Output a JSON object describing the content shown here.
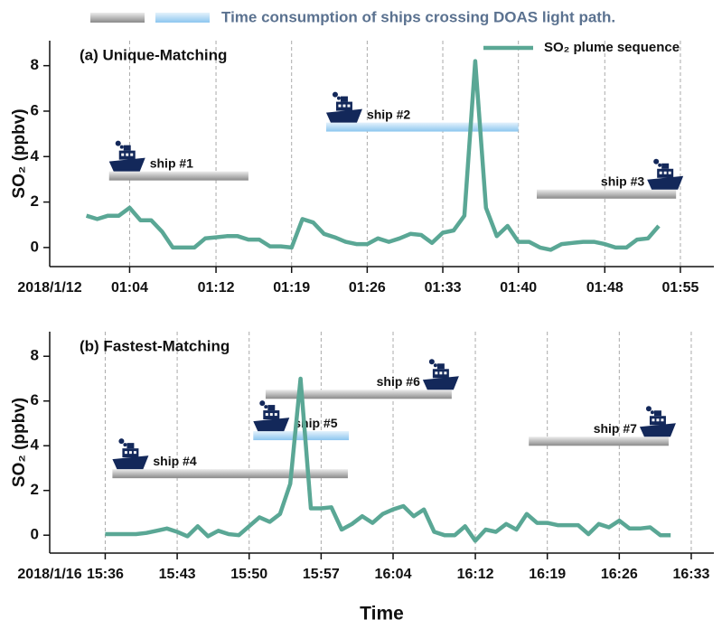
{
  "ship_bar_legend": "Time consumption of ships crossing DOAS light path.",
  "chart_data": [
    {
      "type": "line",
      "title": "(a) Unique-Matching",
      "ylabel": "SO₂ (ppbv)",
      "x_date_label": "2018/1/12",
      "x": [
        60,
        61,
        62,
        63,
        64,
        65,
        66,
        67,
        68,
        69,
        70,
        71,
        72,
        73,
        74,
        75,
        76,
        77,
        78,
        79,
        80,
        81,
        82,
        83,
        84,
        85,
        86,
        87,
        88,
        89,
        90,
        91,
        92,
        93,
        94,
        95,
        96,
        97,
        98,
        99,
        100,
        101,
        102,
        103,
        104,
        105,
        106,
        107,
        108,
        109,
        110,
        111,
        112,
        113
      ],
      "series": [
        {
          "name": "SO₂ plume sequence",
          "color": "#5aa795",
          "values": [
            1.4,
            1.25,
            1.4,
            1.4,
            1.75,
            1.2,
            1.2,
            0.7,
            0.0,
            0.0,
            0.0,
            0.4,
            0.45,
            0.5,
            0.5,
            0.35,
            0.35,
            0.05,
            0.05,
            0.0,
            1.25,
            1.1,
            0.6,
            0.45,
            0.25,
            0.15,
            0.15,
            0.4,
            0.25,
            0.4,
            0.6,
            0.55,
            0.2,
            0.65,
            0.75,
            1.4,
            8.2,
            1.75,
            0.5,
            0.95,
            0.25,
            0.25,
            0.0,
            -0.1,
            0.15,
            0.2,
            0.25,
            0.25,
            0.15,
            0.0,
            0.0,
            0.35,
            0.4,
            0.95
          ]
        }
      ],
      "xlim": [
        56.6,
        118.1
      ],
      "xticks": [
        {
          "value": 64,
          "label": "01:04"
        },
        {
          "value": 72,
          "label": "01:12"
        },
        {
          "value": 79,
          "label": "01:19"
        },
        {
          "value": 86,
          "label": "01:26"
        },
        {
          "value": 93,
          "label": "01:33"
        },
        {
          "value": 100,
          "label": "01:40"
        },
        {
          "value": 108,
          "label": "01:48"
        },
        {
          "value": 115,
          "label": "01:55"
        }
      ],
      "ylim": [
        -0.84,
        9.1
      ],
      "yticks": [
        0,
        2,
        4,
        6,
        8
      ],
      "grid": true,
      "legend": "upper right",
      "ships": [
        {
          "label": "ship #1",
          "start": 62.1,
          "end": 75.0,
          "y": 3.15,
          "color": "gray"
        },
        {
          "label": "ship #2",
          "start": 82.2,
          "end": 100.0,
          "y": 5.3,
          "color": "blue"
        },
        {
          "label": "ship #3",
          "start": 101.7,
          "end": 114.6,
          "y": 2.35,
          "color": "gray"
        }
      ]
    },
    {
      "type": "line",
      "title": "(b) Fastest-Matching",
      "ylabel": "SO₂ (ppbv)",
      "xlabel": "Time",
      "x_date_label": "2018/1/16",
      "x": [
        36,
        37,
        38,
        39,
        40,
        41,
        42,
        43,
        44,
        45,
        46,
        47,
        48,
        49,
        50,
        51,
        52,
        53,
        54,
        55,
        56,
        57,
        58,
        59,
        60,
        61,
        62,
        63,
        64,
        65,
        66,
        67,
        68,
        69,
        70,
        71,
        72,
        73,
        74,
        75,
        76,
        77,
        78,
        79,
        80,
        81,
        82,
        83,
        84,
        85,
        86,
        87,
        88,
        89,
        90,
        91
      ],
      "series": [
        {
          "color": "#5aa795",
          "values": [
            0.05,
            0.05,
            0.05,
            0.05,
            0.1,
            0.2,
            0.3,
            0.15,
            -0.05,
            0.4,
            -0.05,
            0.2,
            0.05,
            0.0,
            0.4,
            0.8,
            0.6,
            0.95,
            2.3,
            7.0,
            1.2,
            1.2,
            1.25,
            0.25,
            0.5,
            0.85,
            0.55,
            0.95,
            1.15,
            1.3,
            0.85,
            1.15,
            0.15,
            0.0,
            0.0,
            0.4,
            -0.25,
            0.25,
            0.15,
            0.5,
            0.25,
            0.95,
            0.55,
            0.55,
            0.45,
            0.45,
            0.45,
            0.05,
            0.5,
            0.35,
            0.65,
            0.3,
            0.3,
            0.35,
            0.0,
            0.0
          ]
        }
      ],
      "xlim": [
        30.6,
        95.2
      ],
      "xticks": [
        {
          "value": 36,
          "label": "15:36"
        },
        {
          "value": 43,
          "label": "15:43"
        },
        {
          "value": 50,
          "label": "15:50"
        },
        {
          "value": 57,
          "label": "15:57"
        },
        {
          "value": 64,
          "label": "16:04"
        },
        {
          "value": 72,
          "label": "16:12"
        },
        {
          "value": 79,
          "label": "16:19"
        },
        {
          "value": 86,
          "label": "16:26"
        },
        {
          "value": 93,
          "label": "16:33"
        }
      ],
      "ylim": [
        -0.8,
        9.1
      ],
      "yticks": [
        0,
        2,
        4,
        6,
        8
      ],
      "grid": true,
      "ships": [
        {
          "label": "ship #4",
          "start": 36.7,
          "end": 59.6,
          "y": 2.75,
          "color": "gray"
        },
        {
          "label": "ship #5",
          "start": 50.4,
          "end": 59.7,
          "y": 4.45,
          "color": "blue"
        },
        {
          "label": "ship #6",
          "start": 51.6,
          "end": 69.7,
          "y": 6.3,
          "color": "gray"
        },
        {
          "label": "ship #7",
          "start": 77.2,
          "end": 90.8,
          "y": 4.2,
          "color": "gray"
        }
      ]
    }
  ]
}
